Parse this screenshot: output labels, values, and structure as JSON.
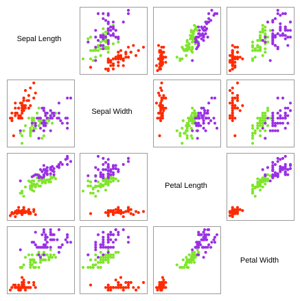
{
  "chart_data": {
    "type": "scatter",
    "layout": "scatterplot-matrix",
    "title": "",
    "variables": [
      "Sepal Length",
      "Sepal Width",
      "Petal Length",
      "Petal Width"
    ],
    "grid": false,
    "legend": "none",
    "series": [
      {
        "color": "#ff2a00",
        "points": [
          [
            5.1,
            3.5,
            1.4,
            0.2
          ],
          [
            4.9,
            3.0,
            1.4,
            0.2
          ],
          [
            4.7,
            3.2,
            1.3,
            0.2
          ],
          [
            4.6,
            3.1,
            1.5,
            0.2
          ],
          [
            5.0,
            3.6,
            1.4,
            0.2
          ],
          [
            5.4,
            3.9,
            1.7,
            0.4
          ],
          [
            4.6,
            3.4,
            1.4,
            0.3
          ],
          [
            5.0,
            3.4,
            1.5,
            0.2
          ],
          [
            4.4,
            2.9,
            1.4,
            0.2
          ],
          [
            4.9,
            3.1,
            1.5,
            0.1
          ],
          [
            5.4,
            3.7,
            1.5,
            0.2
          ],
          [
            4.8,
            3.4,
            1.6,
            0.2
          ],
          [
            4.8,
            3.0,
            1.4,
            0.1
          ],
          [
            4.3,
            3.0,
            1.1,
            0.1
          ],
          [
            5.8,
            4.0,
            1.2,
            0.2
          ],
          [
            5.7,
            4.4,
            1.5,
            0.4
          ],
          [
            5.4,
            3.9,
            1.3,
            0.4
          ],
          [
            5.1,
            3.5,
            1.4,
            0.3
          ],
          [
            5.7,
            3.8,
            1.7,
            0.3
          ],
          [
            5.1,
            3.8,
            1.5,
            0.3
          ],
          [
            5.4,
            3.4,
            1.7,
            0.2
          ],
          [
            5.1,
            3.7,
            1.5,
            0.4
          ],
          [
            4.6,
            3.6,
            1.0,
            0.2
          ],
          [
            5.1,
            3.3,
            1.7,
            0.5
          ],
          [
            4.8,
            3.4,
            1.9,
            0.2
          ],
          [
            5.0,
            3.0,
            1.6,
            0.2
          ],
          [
            5.0,
            3.4,
            1.6,
            0.4
          ],
          [
            5.2,
            3.5,
            1.5,
            0.2
          ],
          [
            5.2,
            3.4,
            1.4,
            0.2
          ],
          [
            4.7,
            3.2,
            1.6,
            0.2
          ],
          [
            4.8,
            3.1,
            1.6,
            0.2
          ],
          [
            5.4,
            3.4,
            1.5,
            0.4
          ],
          [
            5.2,
            4.1,
            1.5,
            0.1
          ],
          [
            5.5,
            4.2,
            1.4,
            0.2
          ],
          [
            4.9,
            3.1,
            1.5,
            0.2
          ],
          [
            5.0,
            3.2,
            1.2,
            0.2
          ],
          [
            5.5,
            3.5,
            1.3,
            0.2
          ],
          [
            4.9,
            3.6,
            1.4,
            0.1
          ],
          [
            4.4,
            3.0,
            1.3,
            0.2
          ],
          [
            5.1,
            3.4,
            1.5,
            0.2
          ],
          [
            5.0,
            3.5,
            1.3,
            0.3
          ],
          [
            4.5,
            2.3,
            1.3,
            0.3
          ],
          [
            4.4,
            3.2,
            1.3,
            0.2
          ],
          [
            5.0,
            3.5,
            1.6,
            0.6
          ],
          [
            5.1,
            3.8,
            1.9,
            0.4
          ],
          [
            4.8,
            3.0,
            1.4,
            0.3
          ],
          [
            5.1,
            3.8,
            1.6,
            0.2
          ],
          [
            4.6,
            3.2,
            1.4,
            0.2
          ],
          [
            5.3,
            3.7,
            1.5,
            0.2
          ],
          [
            5.0,
            3.3,
            1.4,
            0.2
          ]
        ]
      },
      {
        "color": "#7fe52a",
        "points": [
          [
            7.0,
            3.2,
            4.7,
            1.4
          ],
          [
            6.4,
            3.2,
            4.5,
            1.5
          ],
          [
            6.9,
            3.1,
            4.9,
            1.5
          ],
          [
            5.5,
            2.3,
            4.0,
            1.3
          ],
          [
            6.5,
            2.8,
            4.6,
            1.5
          ],
          [
            5.7,
            2.8,
            4.5,
            1.3
          ],
          [
            6.3,
            3.3,
            4.7,
            1.6
          ],
          [
            4.9,
            2.4,
            3.3,
            1.0
          ],
          [
            6.6,
            2.9,
            4.6,
            1.3
          ],
          [
            5.2,
            2.7,
            3.9,
            1.4
          ],
          [
            5.0,
            2.0,
            3.5,
            1.0
          ],
          [
            5.9,
            3.0,
            4.2,
            1.5
          ],
          [
            6.0,
            2.2,
            4.0,
            1.0
          ],
          [
            6.1,
            2.9,
            4.7,
            1.4
          ],
          [
            5.6,
            2.9,
            3.6,
            1.3
          ],
          [
            6.7,
            3.1,
            4.4,
            1.4
          ],
          [
            5.6,
            3.0,
            4.5,
            1.5
          ],
          [
            5.8,
            2.7,
            4.1,
            1.0
          ],
          [
            6.2,
            2.2,
            4.5,
            1.5
          ],
          [
            5.6,
            2.5,
            3.9,
            1.1
          ],
          [
            5.9,
            3.2,
            4.8,
            1.8
          ],
          [
            6.1,
            2.8,
            4.0,
            1.3
          ],
          [
            6.3,
            2.5,
            4.9,
            1.5
          ],
          [
            6.1,
            2.8,
            4.7,
            1.2
          ],
          [
            6.4,
            2.9,
            4.3,
            1.3
          ],
          [
            6.6,
            3.0,
            4.4,
            1.4
          ],
          [
            6.8,
            2.8,
            4.8,
            1.4
          ],
          [
            6.7,
            3.0,
            5.0,
            1.7
          ],
          [
            6.0,
            2.9,
            4.5,
            1.5
          ],
          [
            5.7,
            2.6,
            3.5,
            1.0
          ],
          [
            5.5,
            2.4,
            3.8,
            1.1
          ],
          [
            5.5,
            2.4,
            3.7,
            1.0
          ],
          [
            5.8,
            2.7,
            3.9,
            1.2
          ],
          [
            6.0,
            2.7,
            5.1,
            1.6
          ],
          [
            5.4,
            3.0,
            4.5,
            1.5
          ],
          [
            6.0,
            3.4,
            4.5,
            1.6
          ],
          [
            6.7,
            3.1,
            4.7,
            1.5
          ],
          [
            6.3,
            2.3,
            4.4,
            1.3
          ],
          [
            5.6,
            3.0,
            4.1,
            1.3
          ],
          [
            5.5,
            2.5,
            4.0,
            1.3
          ],
          [
            5.5,
            2.6,
            4.4,
            1.2
          ],
          [
            6.1,
            3.0,
            4.6,
            1.4
          ],
          [
            5.8,
            2.6,
            4.0,
            1.2
          ],
          [
            5.0,
            2.3,
            3.3,
            1.0
          ],
          [
            5.6,
            2.7,
            4.2,
            1.3
          ],
          [
            5.7,
            3.0,
            4.2,
            1.2
          ],
          [
            5.7,
            2.9,
            4.2,
            1.3
          ],
          [
            6.2,
            2.9,
            4.3,
            1.3
          ],
          [
            5.1,
            2.5,
            3.0,
            1.1
          ],
          [
            5.7,
            2.8,
            4.1,
            1.3
          ]
        ]
      },
      {
        "color": "#9a30e6",
        "points": [
          [
            6.3,
            3.3,
            6.0,
            2.5
          ],
          [
            5.8,
            2.7,
            5.1,
            1.9
          ],
          [
            7.1,
            3.0,
            5.9,
            2.1
          ],
          [
            6.3,
            2.9,
            5.6,
            1.8
          ],
          [
            6.5,
            3.0,
            5.8,
            2.2
          ],
          [
            7.6,
            3.0,
            6.6,
            2.1
          ],
          [
            4.9,
            2.5,
            4.5,
            1.7
          ],
          [
            7.3,
            2.9,
            6.3,
            1.8
          ],
          [
            6.7,
            2.5,
            5.8,
            1.8
          ],
          [
            7.2,
            3.6,
            6.1,
            2.5
          ],
          [
            6.5,
            3.2,
            5.1,
            2.0
          ],
          [
            6.4,
            2.7,
            5.3,
            1.9
          ],
          [
            6.8,
            3.0,
            5.5,
            2.1
          ],
          [
            5.7,
            2.5,
            5.0,
            2.0
          ],
          [
            5.8,
            2.8,
            5.1,
            2.4
          ],
          [
            6.4,
            3.2,
            5.3,
            2.3
          ],
          [
            6.5,
            3.0,
            5.5,
            1.8
          ],
          [
            7.7,
            3.8,
            6.7,
            2.2
          ],
          [
            7.7,
            2.6,
            6.9,
            2.3
          ],
          [
            6.0,
            2.2,
            5.0,
            1.5
          ],
          [
            6.9,
            3.2,
            5.7,
            2.3
          ],
          [
            5.6,
            2.8,
            4.9,
            2.0
          ],
          [
            7.7,
            2.8,
            6.7,
            2.0
          ],
          [
            6.3,
            2.7,
            4.9,
            1.8
          ],
          [
            6.7,
            3.3,
            5.7,
            2.1
          ],
          [
            7.2,
            3.2,
            6.0,
            1.8
          ],
          [
            6.2,
            2.8,
            4.8,
            1.8
          ],
          [
            6.1,
            3.0,
            4.9,
            1.8
          ],
          [
            6.4,
            2.8,
            5.6,
            2.1
          ],
          [
            7.2,
            3.0,
            5.8,
            1.6
          ],
          [
            7.4,
            2.8,
            6.1,
            1.9
          ],
          [
            7.9,
            3.8,
            6.4,
            2.0
          ],
          [
            6.4,
            2.8,
            5.6,
            2.2
          ],
          [
            6.3,
            2.8,
            5.1,
            1.5
          ],
          [
            6.1,
            2.6,
            5.6,
            1.4
          ],
          [
            7.7,
            3.0,
            6.1,
            2.3
          ],
          [
            6.3,
            3.4,
            5.6,
            2.4
          ],
          [
            6.4,
            3.1,
            5.5,
            1.8
          ],
          [
            6.0,
            3.0,
            4.8,
            1.8
          ],
          [
            6.9,
            3.1,
            5.4,
            2.1
          ],
          [
            6.7,
            3.1,
            5.6,
            2.4
          ],
          [
            6.9,
            3.1,
            5.1,
            2.3
          ],
          [
            5.8,
            2.7,
            5.1,
            1.9
          ],
          [
            6.8,
            3.2,
            5.9,
            2.3
          ],
          [
            6.7,
            3.3,
            5.7,
            2.5
          ],
          [
            6.7,
            3.0,
            5.2,
            2.3
          ],
          [
            6.3,
            2.5,
            5.0,
            1.9
          ],
          [
            6.5,
            3.0,
            5.2,
            2.0
          ],
          [
            6.2,
            3.4,
            5.4,
            2.3
          ],
          [
            5.9,
            3.0,
            5.1,
            1.8
          ]
        ]
      }
    ]
  }
}
